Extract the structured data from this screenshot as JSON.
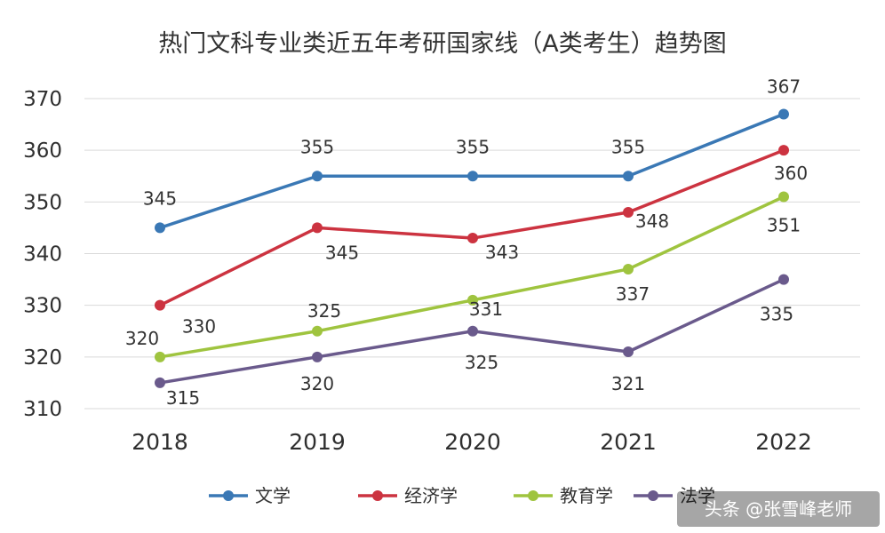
{
  "chart_data": {
    "type": "line",
    "title": "热门文科专业类近五年考研国家线（A类考生）趋势图",
    "categories": [
      "2018",
      "2019",
      "2020",
      "2021",
      "2022"
    ],
    "ylim": [
      310,
      370
    ],
    "yticks": [
      "310",
      "320",
      "330",
      "340",
      "350",
      "360",
      "370"
    ],
    "grid": true,
    "legend_position": "bottom",
    "series": [
      {
        "name": "文学",
        "color": "#3a78b5",
        "values": [
          345,
          355,
          355,
          355,
          367
        ]
      },
      {
        "name": "经济学",
        "color": "#cc3340",
        "values": [
          330,
          345,
          343,
          348,
          360
        ]
      },
      {
        "name": "教育学",
        "color": "#9fc43f",
        "values": [
          320,
          325,
          331,
          337,
          351
        ]
      },
      {
        "name": "法学",
        "color": "#6a5a8c",
        "values": [
          315,
          320,
          325,
          321,
          335
        ]
      }
    ]
  },
  "watermark": {
    "text": "头条 @张雪峰老师"
  }
}
